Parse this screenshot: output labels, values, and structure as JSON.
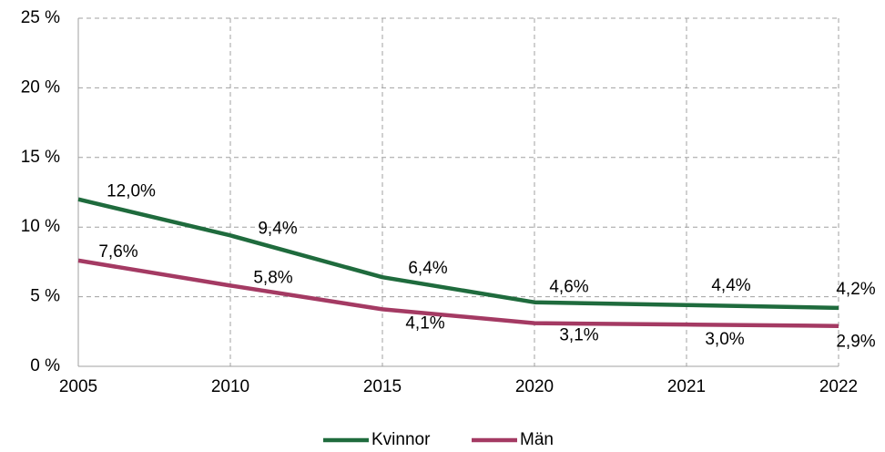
{
  "chart_data": {
    "type": "line",
    "categories": [
      "2005",
      "2010",
      "2015",
      "2020",
      "2021",
      "2022"
    ],
    "series": [
      {
        "name": "Kvinnor",
        "color": "#1f6b3d",
        "values": [
          12.0,
          9.4,
          6.4,
          4.6,
          4.4,
          4.2
        ],
        "value_labels": [
          "12,0%",
          "9,4%",
          "6,4%",
          "4,6%",
          "4,4%",
          "4,2%"
        ]
      },
      {
        "name": "Män",
        "color": "#a43a63",
        "values": [
          7.6,
          5.8,
          4.1,
          3.1,
          3.0,
          2.9
        ],
        "value_labels": [
          "7,6%",
          "5,8%",
          "4,1%",
          "3,1%",
          "3,0%",
          "2,9%"
        ]
      }
    ],
    "ylim": [
      0,
      25
    ],
    "yticks": [
      {
        "value": 0,
        "label": "0 %"
      },
      {
        "value": 5,
        "label": "5 %"
      },
      {
        "value": 10,
        "label": "10 %"
      },
      {
        "value": 15,
        "label": "15 %"
      },
      {
        "value": 20,
        "label": "20 %"
      },
      {
        "value": 25,
        "label": "25 %"
      }
    ],
    "grid": true,
    "legend": "bottom"
  }
}
